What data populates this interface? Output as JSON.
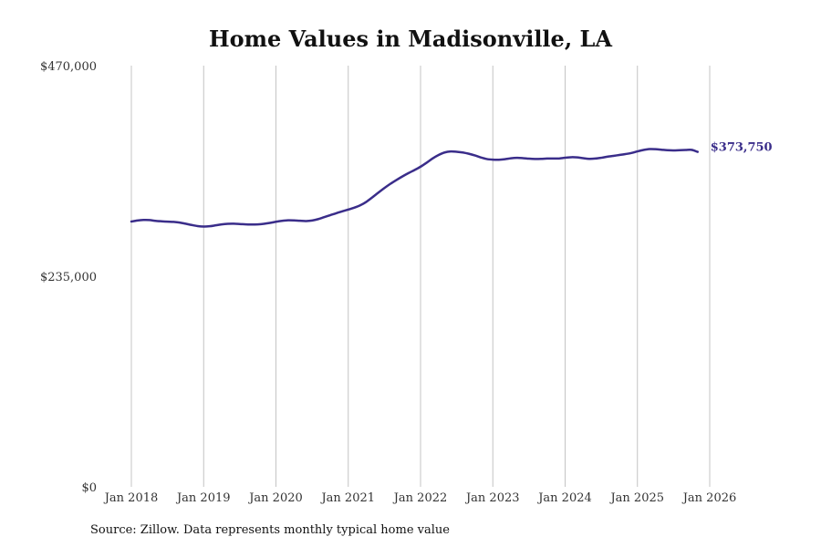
{
  "chart_data": {
    "type": "line",
    "title": "Home Values in Madisonville, LA",
    "source": "Source: Zillow. Data represents monthly typical home value",
    "ylim": [
      0,
      470000
    ],
    "y_ticks": [
      {
        "value": 0,
        "label": "$0"
      },
      {
        "value": 235000,
        "label": "$235,000"
      },
      {
        "value": 470000,
        "label": "$470,000"
      }
    ],
    "xlim": [
      2018.0,
      2026.0
    ],
    "x_ticks": [
      {
        "value": 2018,
        "label": "Jan 2018"
      },
      {
        "value": 2019,
        "label": "Jan 2019"
      },
      {
        "value": 2020,
        "label": "Jan 2020"
      },
      {
        "value": 2021,
        "label": "Jan 2021"
      },
      {
        "value": 2022,
        "label": "Jan 2022"
      },
      {
        "value": 2023,
        "label": "Jan 2023"
      },
      {
        "value": 2024,
        "label": "Jan 2024"
      },
      {
        "value": 2025,
        "label": "Jan 2025"
      },
      {
        "value": 2026,
        "label": "Jan 2026"
      }
    ],
    "grid": "vertical",
    "series": [
      {
        "name": "Typical home value",
        "color": "#3a2d8a",
        "points": [
          [
            2018.0,
            296000
          ],
          [
            2018.083,
            297200
          ],
          [
            2018.167,
            297800
          ],
          [
            2018.25,
            297700
          ],
          [
            2018.333,
            296800
          ],
          [
            2018.417,
            296300
          ],
          [
            2018.5,
            295900
          ],
          [
            2018.583,
            295600
          ],
          [
            2018.667,
            294900
          ],
          [
            2018.75,
            293600
          ],
          [
            2018.833,
            292200
          ],
          [
            2018.917,
            291000
          ],
          [
            2019.0,
            290500
          ],
          [
            2019.083,
            290800
          ],
          [
            2019.167,
            291800
          ],
          [
            2019.25,
            292900
          ],
          [
            2019.333,
            293500
          ],
          [
            2019.417,
            293600
          ],
          [
            2019.5,
            293300
          ],
          [
            2019.583,
            292900
          ],
          [
            2019.667,
            292700
          ],
          [
            2019.75,
            292900
          ],
          [
            2019.833,
            293500
          ],
          [
            2019.917,
            294500
          ],
          [
            2020.0,
            295800
          ],
          [
            2020.083,
            296800
          ],
          [
            2020.167,
            297400
          ],
          [
            2020.25,
            297300
          ],
          [
            2020.333,
            296900
          ],
          [
            2020.417,
            296600
          ],
          [
            2020.5,
            297200
          ],
          [
            2020.583,
            298700
          ],
          [
            2020.667,
            300900
          ],
          [
            2020.75,
            303100
          ],
          [
            2020.833,
            305300
          ],
          [
            2020.917,
            307400
          ],
          [
            2021.0,
            309400
          ],
          [
            2021.083,
            311500
          ],
          [
            2021.167,
            314200
          ],
          [
            2021.25,
            318000
          ],
          [
            2021.333,
            323000
          ],
          [
            2021.417,
            328300
          ],
          [
            2021.5,
            333400
          ],
          [
            2021.583,
            338100
          ],
          [
            2021.667,
            342400
          ],
          [
            2021.75,
            346400
          ],
          [
            2021.833,
            350100
          ],
          [
            2021.917,
            353500
          ],
          [
            2022.0,
            357200
          ],
          [
            2022.083,
            361600
          ],
          [
            2022.167,
            366400
          ],
          [
            2022.25,
            370300
          ],
          [
            2022.333,
            373100
          ],
          [
            2022.417,
            374200
          ],
          [
            2022.5,
            373900
          ],
          [
            2022.583,
            373100
          ],
          [
            2022.667,
            371700
          ],
          [
            2022.75,
            369800
          ],
          [
            2022.833,
            367600
          ],
          [
            2022.917,
            365800
          ],
          [
            2023.0,
            365100
          ],
          [
            2023.083,
            365000
          ],
          [
            2023.167,
            365600
          ],
          [
            2023.25,
            366600
          ],
          [
            2023.333,
            367100
          ],
          [
            2023.417,
            366800
          ],
          [
            2023.5,
            366200
          ],
          [
            2023.583,
            365900
          ],
          [
            2023.667,
            366000
          ],
          [
            2023.75,
            366300
          ],
          [
            2023.833,
            366300
          ],
          [
            2023.917,
            366400
          ],
          [
            2024.0,
            367200
          ],
          [
            2024.083,
            367800
          ],
          [
            2024.167,
            367600
          ],
          [
            2024.25,
            366700
          ],
          [
            2024.333,
            366000
          ],
          [
            2024.417,
            366300
          ],
          [
            2024.5,
            367200
          ],
          [
            2024.583,
            368400
          ],
          [
            2024.667,
            369300
          ],
          [
            2024.75,
            370300
          ],
          [
            2024.833,
            371300
          ],
          [
            2024.917,
            372500
          ],
          [
            2025.0,
            374300
          ],
          [
            2025.083,
            375900
          ],
          [
            2025.167,
            376900
          ],
          [
            2025.25,
            376800
          ],
          [
            2025.333,
            376200
          ],
          [
            2025.417,
            375600
          ],
          [
            2025.5,
            375400
          ],
          [
            2025.583,
            375700
          ],
          [
            2025.667,
            375900
          ],
          [
            2025.75,
            376000
          ],
          [
            2025.833,
            373750
          ]
        ]
      }
    ],
    "end_label": "$373,750"
  }
}
